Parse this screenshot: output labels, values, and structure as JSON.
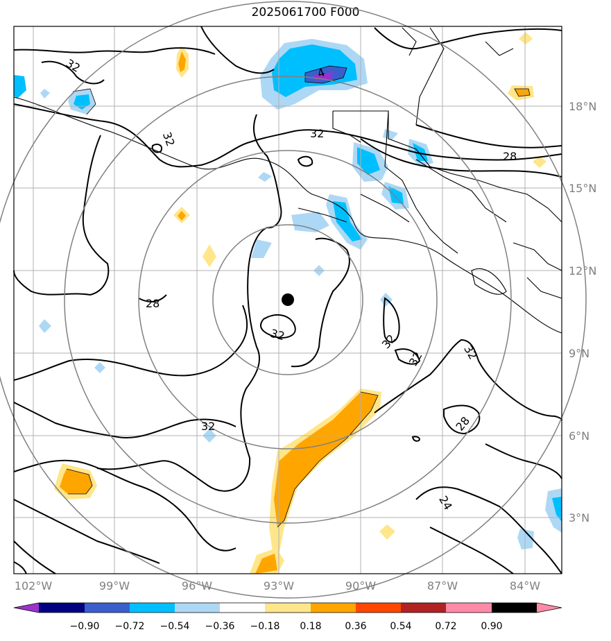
{
  "title": "2025061700 F000",
  "lon_ticks": [
    "102°W",
    "99°W",
    "96°W",
    "93°W",
    "90°W",
    "87°W",
    "84°W"
  ],
  "lat_ticks": [
    "18°N",
    "15°N",
    "12°N",
    "9°N",
    "6°N",
    "3°N"
  ],
  "colorbar": {
    "labels": [
      "−0.90",
      "−0.72",
      "−0.54",
      "−0.36",
      "−0.18",
      "0.18",
      "0.36",
      "0.54",
      "0.72",
      "0.90"
    ],
    "colors": [
      "#9933cc",
      "#000080",
      "#3a5fcd",
      "#00bfff",
      "#add8f5",
      "#ffffff",
      "#ffe68a",
      "#ffa500",
      "#ff4500",
      "#b22222",
      "#ff8aa8"
    ]
  },
  "contour_labels": [
    "32",
    "32",
    "32",
    "32",
    "32",
    "32",
    "32",
    "32",
    "28",
    "28",
    "28",
    "24",
    "4"
  ],
  "center_marker": "storm-center",
  "colors": {
    "grid": "#b0b0b0",
    "range_rings": "#808080",
    "ticks": "#7f7f7f"
  }
}
